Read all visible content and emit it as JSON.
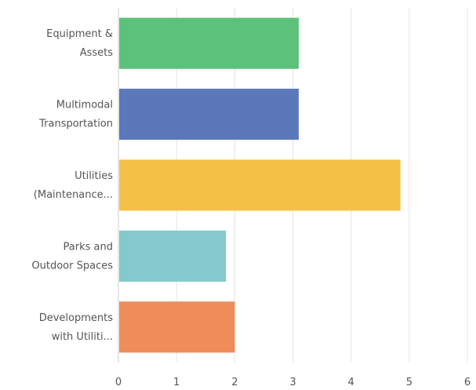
{
  "chart_data": {
    "type": "bar",
    "orientation": "horizontal",
    "categories": [
      [
        "Equipment &",
        "Assets"
      ],
      [
        "Multimodal",
        "Transportation"
      ],
      [
        "Utilities",
        "(Maintenance..."
      ],
      [
        "Parks and",
        "Outdoor Spaces"
      ],
      [
        "Developments",
        "with Utiliti..."
      ]
    ],
    "values": [
      3.1,
      3.1,
      4.85,
      1.85,
      2.0
    ],
    "colors": [
      "#5cc17a",
      "#5b78bb",
      "#f4c146",
      "#84c9cb",
      "#f08c5a"
    ],
    "xlim": [
      0,
      6
    ],
    "xticks": [
      "0",
      "1",
      "2",
      "3",
      "4",
      "5",
      "6"
    ],
    "grid": true,
    "legend": "none"
  }
}
